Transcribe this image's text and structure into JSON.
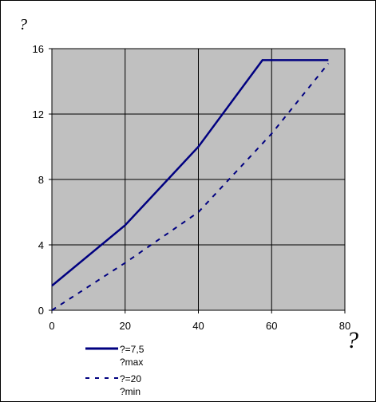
{
  "chart_data": {
    "type": "line",
    "xlabel": "?",
    "ylabel": "?",
    "xlim": [
      0,
      80
    ],
    "ylim": [
      0,
      16
    ],
    "x_ticks": [
      0,
      20,
      40,
      60,
      80
    ],
    "y_ticks": [
      0,
      4,
      8,
      12,
      16
    ],
    "grid": true,
    "plot_background": "#c0c0c0",
    "legend_position": "bottom-left",
    "series": [
      {
        "name": "?=7,5",
        "sub": "?max",
        "style": "solid",
        "color": "#000080",
        "x": [
          0,
          20,
          40,
          57.5,
          75.5
        ],
        "y": [
          1.5,
          5.2,
          10.0,
          15.3,
          15.3
        ]
      },
      {
        "name": "?=20",
        "sub": "?min",
        "style": "dashed",
        "color": "#000080",
        "x": [
          0,
          20,
          40,
          60,
          75.5
        ],
        "y": [
          0,
          2.9,
          6.0,
          10.8,
          15.1
        ]
      }
    ]
  }
}
